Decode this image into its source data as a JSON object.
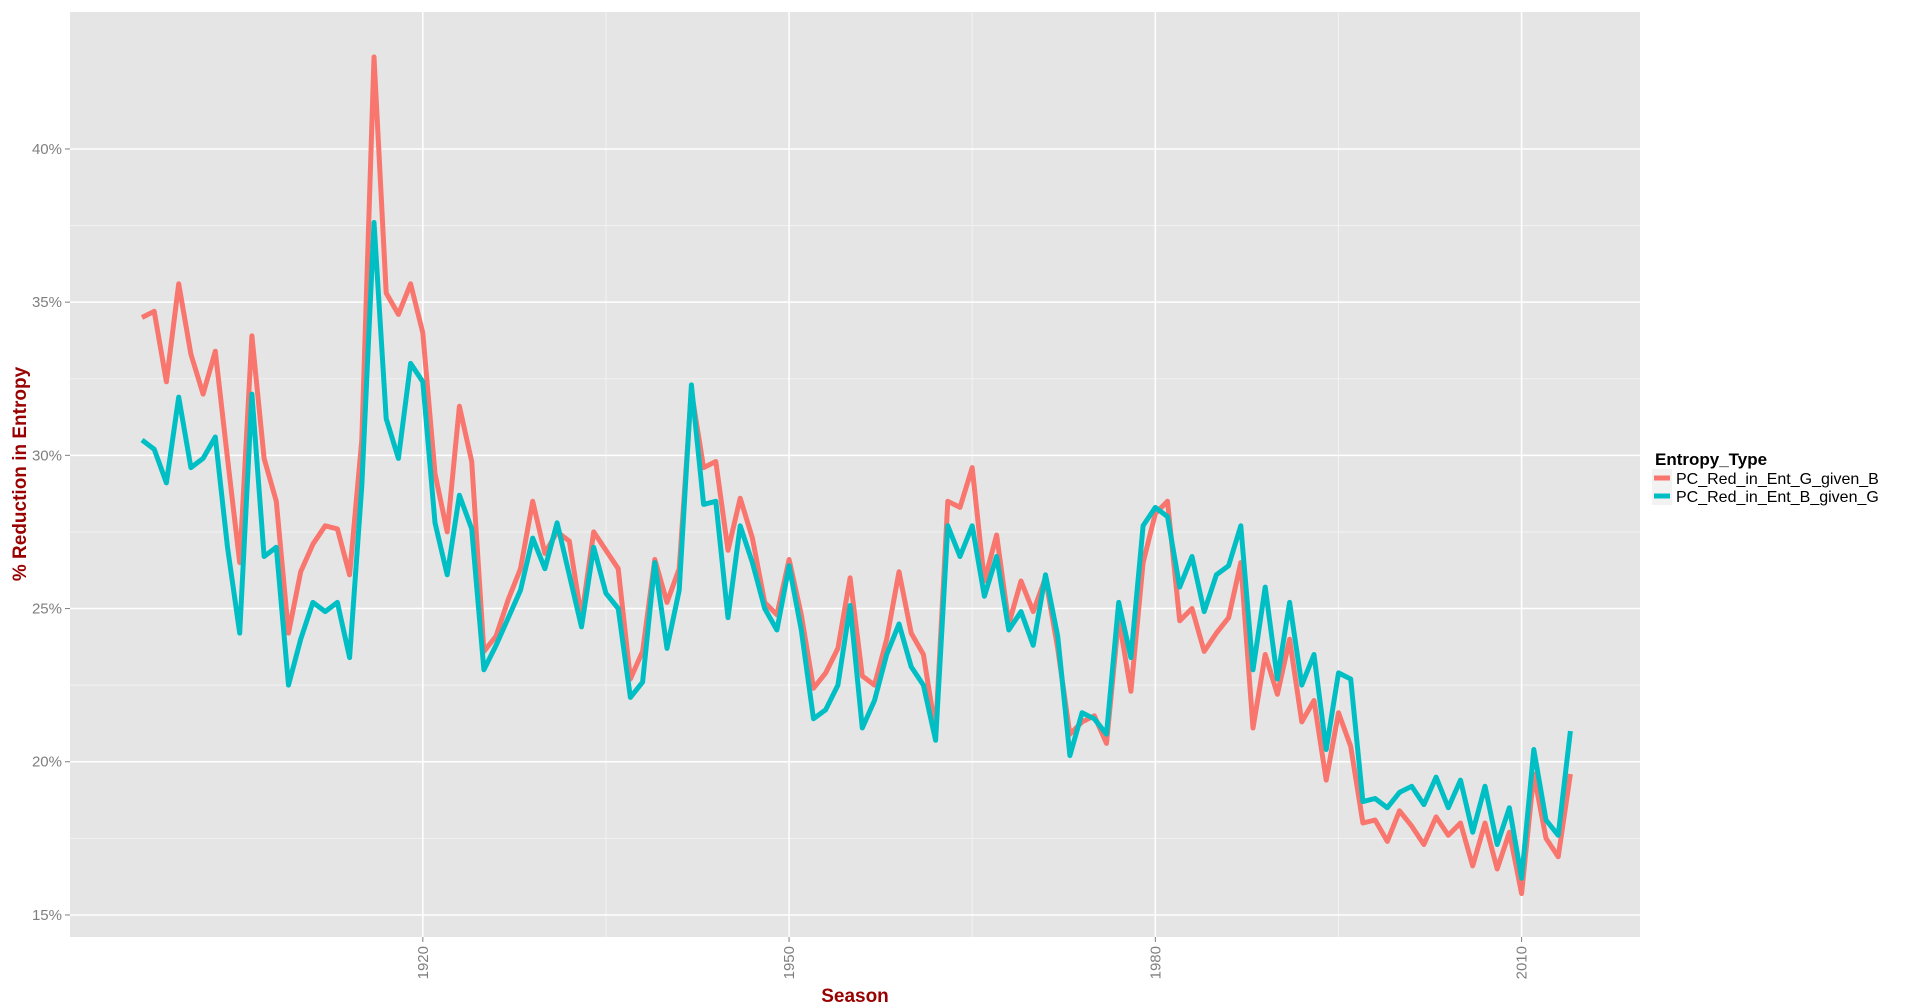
{
  "chart_data": {
    "type": "line",
    "x_label": "Season",
    "y_label": "% Reduction in Entropy",
    "legend_title": "Entropy_Type",
    "legend_position": "right",
    "grid": true,
    "xlim": [
      1891.1,
      2019.7
    ],
    "ylim": [
      14.28,
      44.47
    ],
    "xticks": [
      1920,
      1950,
      1980,
      2010
    ],
    "yticks": [
      {
        "value": 15,
        "label": "15%"
      },
      {
        "value": 20,
        "label": "20%"
      },
      {
        "value": 25,
        "label": "25%"
      },
      {
        "value": 30,
        "label": "30%"
      },
      {
        "value": 35,
        "label": "35%"
      },
      {
        "value": 40,
        "label": "40%"
      }
    ],
    "x": [
      1897,
      1898,
      1899,
      1900,
      1901,
      1902,
      1903,
      1904,
      1905,
      1906,
      1907,
      1908,
      1909,
      1910,
      1911,
      1912,
      1913,
      1914,
      1915,
      1916,
      1917,
      1918,
      1919,
      1920,
      1921,
      1922,
      1923,
      1924,
      1925,
      1926,
      1927,
      1928,
      1929,
      1930,
      1931,
      1932,
      1933,
      1934,
      1935,
      1936,
      1937,
      1938,
      1939,
      1940,
      1941,
      1942,
      1943,
      1944,
      1945,
      1946,
      1947,
      1948,
      1949,
      1950,
      1951,
      1952,
      1953,
      1954,
      1955,
      1956,
      1957,
      1958,
      1959,
      1960,
      1961,
      1962,
      1963,
      1964,
      1965,
      1966,
      1967,
      1968,
      1969,
      1970,
      1971,
      1972,
      1973,
      1974,
      1975,
      1976,
      1977,
      1978,
      1979,
      1980,
      1981,
      1982,
      1983,
      1984,
      1985,
      1986,
      1987,
      1988,
      1989,
      1990,
      1991,
      1992,
      1993,
      1994,
      1995,
      1996,
      1997,
      1998,
      1999,
      2000,
      2001,
      2002,
      2003,
      2004,
      2005,
      2006,
      2007,
      2008,
      2009,
      2010,
      2011,
      2012,
      2013,
      2014
    ],
    "series": [
      {
        "name": "PC_Red_in_Ent_G_given_B",
        "color": "#f8766d",
        "values": [
          34.5,
          34.7,
          32.4,
          35.6,
          33.3,
          32.0,
          33.4,
          29.9,
          26.5,
          33.9,
          29.9,
          28.5,
          24.2,
          26.2,
          27.1,
          27.7,
          27.6,
          26.1,
          30.5,
          43.0,
          35.3,
          34.6,
          35.6,
          34.0,
          29.4,
          27.5,
          31.6,
          29.8,
          23.6,
          24.1,
          25.3,
          26.3,
          28.5,
          26.8,
          27.5,
          27.2,
          24.7,
          27.5,
          26.9,
          26.3,
          22.7,
          23.6,
          26.6,
          25.2,
          26.3,
          32.1,
          29.6,
          29.8,
          26.9,
          28.6,
          27.3,
          25.2,
          24.8,
          26.6,
          24.8,
          22.4,
          22.9,
          23.7,
          26.0,
          22.8,
          22.5,
          24.0,
          26.2,
          24.2,
          23.5,
          21.0,
          28.5,
          28.3,
          29.6,
          25.9,
          27.4,
          24.5,
          25.9,
          24.9,
          26.0,
          23.7,
          20.9,
          21.3,
          21.5,
          20.6,
          24.7,
          22.3,
          26.5,
          28.1,
          28.5,
          24.6,
          25.0,
          23.6,
          24.2,
          24.7,
          26.5,
          21.1,
          23.5,
          22.2,
          24.0,
          21.3,
          22.0,
          19.4,
          21.6,
          20.5,
          18.0,
          18.1,
          17.4,
          18.4,
          17.9,
          17.3,
          18.2,
          17.6,
          18.0,
          16.6,
          18.0,
          16.5,
          17.7,
          15.7,
          19.6,
          17.5,
          16.9,
          19.6
        ]
      },
      {
        "name": "PC_Red_in_Ent_B_given_G",
        "color": "#00bfc4",
        "values": [
          30.5,
          30.2,
          29.1,
          31.9,
          29.6,
          29.9,
          30.6,
          27.0,
          24.2,
          32.0,
          26.7,
          27.0,
          22.5,
          24.0,
          25.2,
          24.9,
          25.2,
          23.4,
          29.0,
          37.6,
          31.2,
          29.9,
          33.0,
          32.4,
          27.8,
          26.1,
          28.7,
          27.6,
          23.0,
          23.8,
          24.7,
          25.6,
          27.3,
          26.3,
          27.8,
          26.1,
          24.4,
          27.0,
          25.5,
          25.0,
          22.1,
          22.6,
          26.5,
          23.7,
          25.6,
          32.3,
          28.4,
          28.5,
          24.7,
          27.7,
          26.5,
          25.0,
          24.3,
          26.4,
          24.3,
          21.4,
          21.7,
          22.5,
          25.1,
          21.1,
          22.0,
          23.5,
          24.5,
          23.1,
          22.5,
          20.7,
          27.7,
          26.7,
          27.7,
          25.4,
          26.7,
          24.3,
          24.9,
          23.8,
          26.1,
          24.1,
          20.2,
          21.6,
          21.4,
          20.9,
          25.2,
          23.4,
          27.7,
          28.3,
          28.0,
          25.7,
          26.7,
          24.9,
          26.1,
          26.4,
          27.7,
          23.0,
          25.7,
          22.7,
          25.2,
          22.5,
          23.5,
          20.4,
          22.9,
          22.7,
          18.7,
          18.8,
          18.5,
          19.0,
          19.2,
          18.6,
          19.5,
          18.5,
          19.4,
          17.7,
          19.2,
          17.3,
          18.5,
          16.2,
          20.4,
          18.1,
          17.6,
          21.0
        ]
      }
    ]
  }
}
